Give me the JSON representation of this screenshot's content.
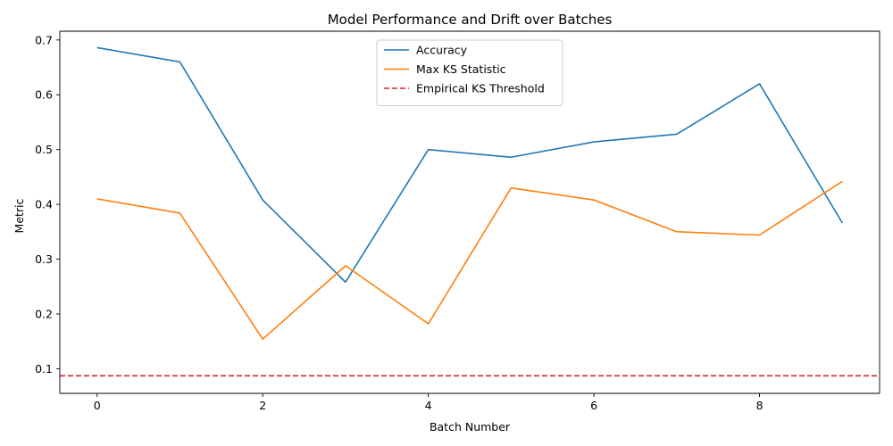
{
  "chart_data": {
    "type": "line",
    "title": "Model Performance and Drift over Batches",
    "xlabel": "Batch Number",
    "ylabel": "Metric",
    "xlim": [
      -0.45,
      9.45
    ],
    "ylim": [
      0.055,
      0.716
    ],
    "xticks": [
      0,
      2,
      4,
      6,
      8
    ],
    "yticks": [
      0.1,
      0.2,
      0.3,
      0.4,
      0.5,
      0.6,
      0.7
    ],
    "x": [
      0,
      1,
      2,
      3,
      4,
      5,
      6,
      7,
      8,
      9
    ],
    "series": [
      {
        "name": "Accuracy",
        "color": "#1f77b4",
        "values": [
          0.686,
          0.66,
          0.408,
          0.258,
          0.5,
          0.486,
          0.514,
          0.528,
          0.62,
          0.366
        ]
      },
      {
        "name": "Max KS Statistic",
        "color": "#ff7f0e",
        "values": [
          0.41,
          0.384,
          0.154,
          0.288,
          0.182,
          0.43,
          0.408,
          0.35,
          0.344,
          0.442
        ]
      }
    ],
    "hlines": [
      {
        "name": "Empirical KS Threshold",
        "value": 0.087,
        "color": "#d62728",
        "style": "dashed"
      }
    ],
    "legend": {
      "position": "top-center"
    },
    "grid": false
  }
}
